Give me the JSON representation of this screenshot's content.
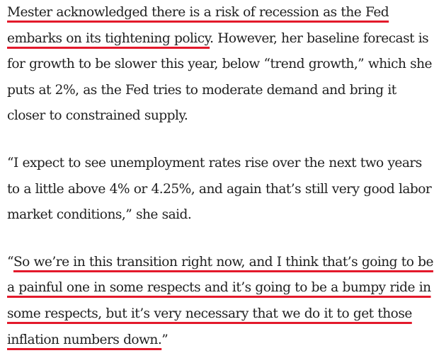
{
  "article": {
    "paragraphs": [
      {
        "id": "p1",
        "runs": [
          {
            "text": "Mester acknowledged there is a risk of recession as the Fed embarks on its tightening policy",
            "highlight": true
          },
          {
            "text": ". However, her baseline forecast is for growth to be slower this year, below “trend growth,” which she puts at 2%, as the Fed tries to moderate demand and bring it closer to constrained supply.",
            "highlight": false
          }
        ]
      },
      {
        "id": "p2",
        "runs": [
          {
            "text": "“I expect to see unemployment rates rise over the next two years to a little above 4% or 4.25%, and again that’s still very good labor market conditions,” she said.",
            "highlight": false
          }
        ]
      },
      {
        "id": "p3",
        "runs": [
          {
            "text": "“",
            "highlight": false
          },
          {
            "text": "So we’re in this transition right now, and I think that’s going to be a painful one in some respects and it’s going to be a bumpy ride in some respects, but it’s very necessary that we do it to get those inflation numbers down.",
            "highlight": true
          },
          {
            "text": "”",
            "highlight": false
          }
        ]
      }
    ],
    "highlight_color": "#e3192b",
    "text_color": "#1f1f1f"
  }
}
